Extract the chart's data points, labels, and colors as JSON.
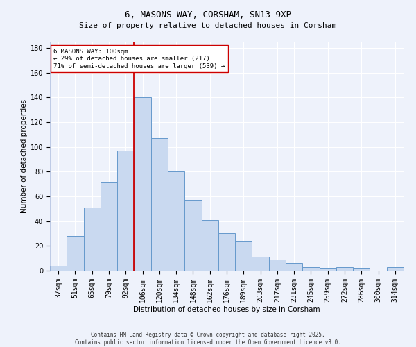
{
  "title": "6, MASONS WAY, CORSHAM, SN13 9XP",
  "subtitle": "Size of property relative to detached houses in Corsham",
  "xlabel": "Distribution of detached houses by size in Corsham",
  "ylabel": "Number of detached properties",
  "categories": [
    "37sqm",
    "51sqm",
    "65sqm",
    "79sqm",
    "92sqm",
    "106sqm",
    "120sqm",
    "134sqm",
    "148sqm",
    "162sqm",
    "176sqm",
    "189sqm",
    "203sqm",
    "217sqm",
    "231sqm",
    "245sqm",
    "259sqm",
    "272sqm",
    "286sqm",
    "300sqm",
    "314sqm"
  ],
  "values": [
    4,
    28,
    51,
    72,
    97,
    140,
    107,
    80,
    57,
    41,
    30,
    24,
    11,
    9,
    6,
    3,
    2,
    3,
    2,
    0,
    3
  ],
  "bar_color": "#c9d9f0",
  "bar_edge_color": "#6699cc",
  "vline_x_index": 5,
  "vline_color": "#cc0000",
  "annotation_text": "6 MASONS WAY: 100sqm\n← 29% of detached houses are smaller (217)\n71% of semi-detached houses are larger (539) →",
  "annotation_box_color": "#ffffff",
  "annotation_box_edge": "#cc0000",
  "ylim": [
    0,
    185
  ],
  "yticks": [
    0,
    20,
    40,
    60,
    80,
    100,
    120,
    140,
    160,
    180
  ],
  "footer_line1": "Contains HM Land Registry data © Crown copyright and database right 2025.",
  "footer_line2": "Contains public sector information licensed under the Open Government Licence v3.0.",
  "bg_color": "#eef2fb",
  "grid_color": "#ffffff",
  "title_fontsize": 9,
  "subtitle_fontsize": 8,
  "axis_label_fontsize": 7.5,
  "tick_fontsize": 7,
  "annotation_fontsize": 6.5,
  "footer_fontsize": 5.5
}
